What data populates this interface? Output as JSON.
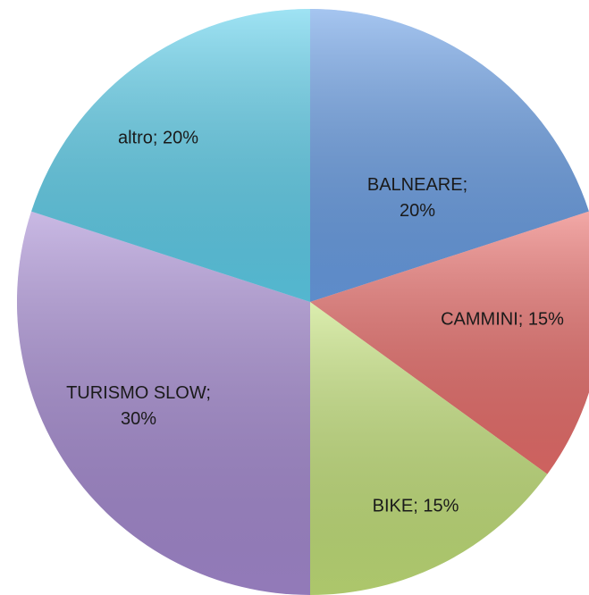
{
  "chart_data": {
    "type": "pie",
    "values": [
      20,
      15,
      15,
      30,
      20
    ],
    "value_labels": [
      "BALNEARE; 20%",
      "CAMMINI; 15%",
      "BIKE; 15%",
      "TURISMO SLOW; 30%",
      "altro; 20%"
    ],
    "colors": [
      "#6a9fe6",
      "#ea6f6c",
      "#c4e27a",
      "#a68bd2",
      "#5fd0ec"
    ]
  }
}
